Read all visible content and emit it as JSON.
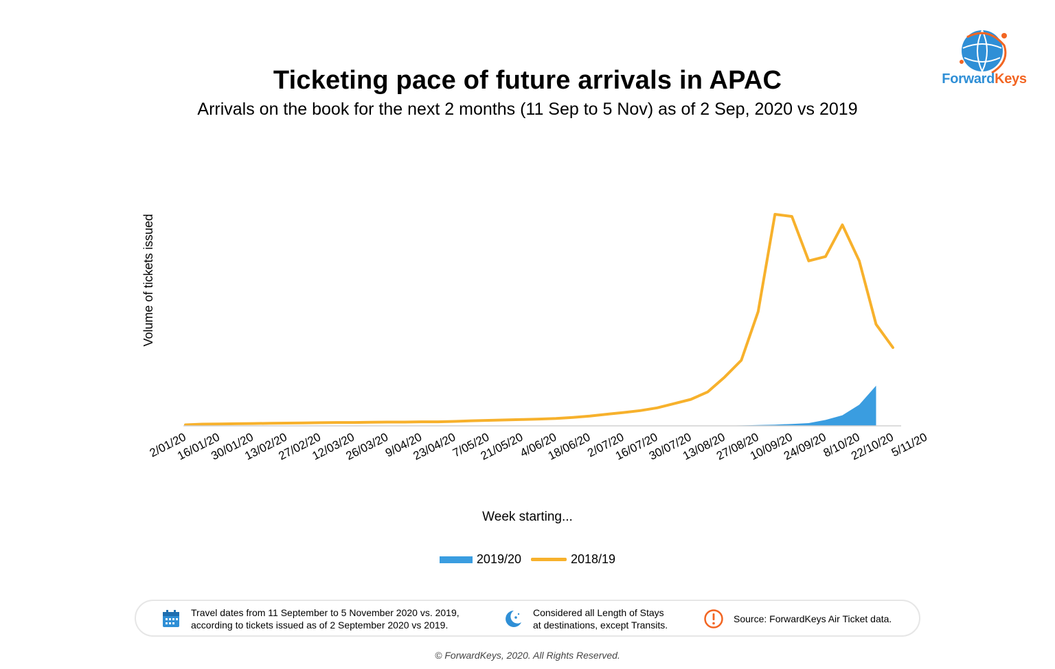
{
  "header": {
    "title": "Ticketing pace of future arrivals in APAC",
    "subtitle": "Arrivals on the book for the next 2 months (11 Sep to 5 Nov) as of 2 Sep, 2020 vs 2019"
  },
  "logo": {
    "text_part1": "Forward",
    "text_part2": "Keys",
    "colors": {
      "blue": "#2f8fd6",
      "orange": "#f26522"
    }
  },
  "chart_data": {
    "type": "area",
    "title": "Ticketing pace of future arrivals in APAC",
    "subtitle": "Arrivals on the book for the next 2 months (11 Sep to 5 Nov) as of 2 Sep, 2020 vs 2019",
    "xlabel": "Week starting...",
    "ylabel": "Volume of tickets issued",
    "tick_labels": [
      "2/01/20",
      "16/01/20",
      "30/01/20",
      "13/02/20",
      "27/02/20",
      "12/03/20",
      "26/03/20",
      "9/04/20",
      "23/04/20",
      "7/05/20",
      "21/05/20",
      "4/06/20",
      "18/06/20",
      "2/07/20",
      "16/07/20",
      "30/07/20",
      "13/08/20",
      "27/08/20",
      "10/09/20",
      "24/09/20",
      "8/10/20",
      "22/10/20",
      "5/11/20"
    ],
    "y_unit": "relative volume (no scale printed)",
    "ylim": [
      0,
      100
    ],
    "grid": false,
    "legend_position": "bottom-center",
    "series": [
      {
        "name": "2019/20",
        "kind": "area",
        "color": "#3a9de0",
        "values": [
          0,
          0,
          0,
          0,
          0,
          0,
          0,
          0,
          0,
          0,
          0,
          0,
          0,
          0,
          0,
          0,
          0,
          0,
          0,
          0,
          0,
          0,
          0,
          0,
          0,
          0,
          0,
          0,
          0,
          0,
          0,
          0,
          0.1,
          0.2,
          0.4,
          0.6,
          0.9,
          1.3,
          2.8,
          5,
          10,
          19
        ]
      },
      {
        "name": "2018/19",
        "kind": "line",
        "color": "#f7b12c",
        "values": [
          0.5,
          0.8,
          0.9,
          1,
          1.1,
          1.2,
          1.3,
          1.4,
          1.5,
          1.6,
          1.6,
          1.7,
          1.8,
          1.8,
          1.9,
          1.9,
          2.1,
          2.4,
          2.6,
          2.8,
          3,
          3.2,
          3.5,
          4,
          4.6,
          5.5,
          6.3,
          7.2,
          8.5,
          10.5,
          12.5,
          16,
          23,
          31,
          54,
          100,
          99,
          78,
          80,
          95,
          78,
          48,
          37
        ]
      }
    ]
  },
  "legend": {
    "items": [
      "2019/20",
      "2018/19"
    ]
  },
  "footer": {
    "note1_line1": "Travel dates from 11 September to 5 November 2020 vs. 2019,",
    "note1_line2": "according to tickets issued as of 2 September 2020 vs 2019.",
    "note2_line1": "Considered all Length of Stays",
    "note2_line2": "at destinations, except Transits.",
    "note3": "Source: ForwardKeys Air Ticket data.",
    "copyright": "© ForwardKeys, 2020. All Rights Reserved."
  }
}
